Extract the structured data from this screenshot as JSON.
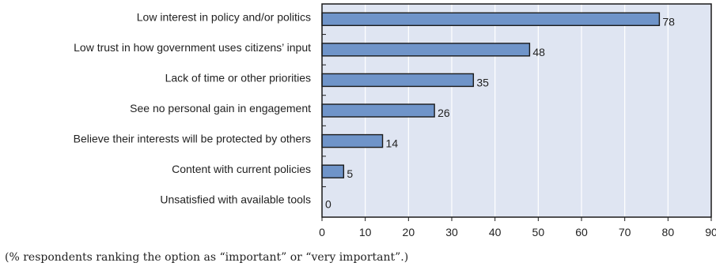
{
  "chart_data": {
    "type": "bar",
    "orientation": "horizontal",
    "categories": [
      "Low interest in policy and/or politics",
      "Low trust in how government uses citizens’ input",
      "Lack of time or other priorities",
      "See no personal gain in engagement",
      "Believe their interests will be protected by others",
      "Content with current policies",
      "Unsatisfied with available tools"
    ],
    "values": [
      78,
      48,
      35,
      26,
      14,
      5,
      0
    ],
    "data_labels": [
      "78",
      "48",
      "35",
      "26",
      "14",
      "5",
      "0"
    ],
    "xlim": [
      0,
      90
    ],
    "xticks": [
      0,
      10,
      20,
      30,
      40,
      50,
      60,
      70,
      80,
      90
    ],
    "grid": true,
    "title": "",
    "xlabel": "",
    "ylabel": "",
    "colors": {
      "bar": "#6f94c9",
      "bar_stroke": "#1a1a1a",
      "plot_bg": "#dfe5f2",
      "grid": "#ffffff",
      "frame": "#1a1a1a"
    }
  },
  "note": "(% respondents ranking the option as “important” or “very important”.)"
}
